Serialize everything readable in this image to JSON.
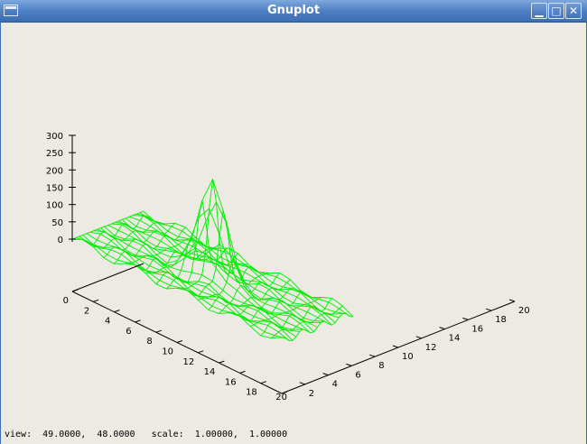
{
  "window": {
    "title": "Gnuplot"
  },
  "titlebar_buttons": {
    "minimize": "▁",
    "maximize": "□",
    "close": "✕"
  },
  "status": {
    "view_label": "view:",
    "view_values": "49.0000,  48.0000",
    "scale_label": "scale:",
    "scale_values": "1.00000,  1.00000"
  },
  "chart_data": {
    "type": "surface-mesh",
    "title": "",
    "xlabel": "",
    "ylabel": "",
    "zlabel": "",
    "view": [
      49,
      48
    ],
    "xrange": [
      0,
      20
    ],
    "yrange": [
      0,
      20
    ],
    "zrange": [
      0,
      300
    ],
    "x_ticks": [
      "0",
      "2",
      "4",
      "6",
      "8",
      "10",
      "12",
      "14",
      "16",
      "18",
      "20"
    ],
    "y_ticks": [
      "2",
      "4",
      "6",
      "8",
      "10",
      "12",
      "14",
      "16",
      "18",
      "20"
    ],
    "z_ticks": [
      "0",
      "50",
      "100",
      "150",
      "200",
      "250",
      "300"
    ],
    "grid_n": 21,
    "peak": {
      "x": 10,
      "y": 10,
      "z": 280
    },
    "mesh_color": "#00ee00"
  }
}
